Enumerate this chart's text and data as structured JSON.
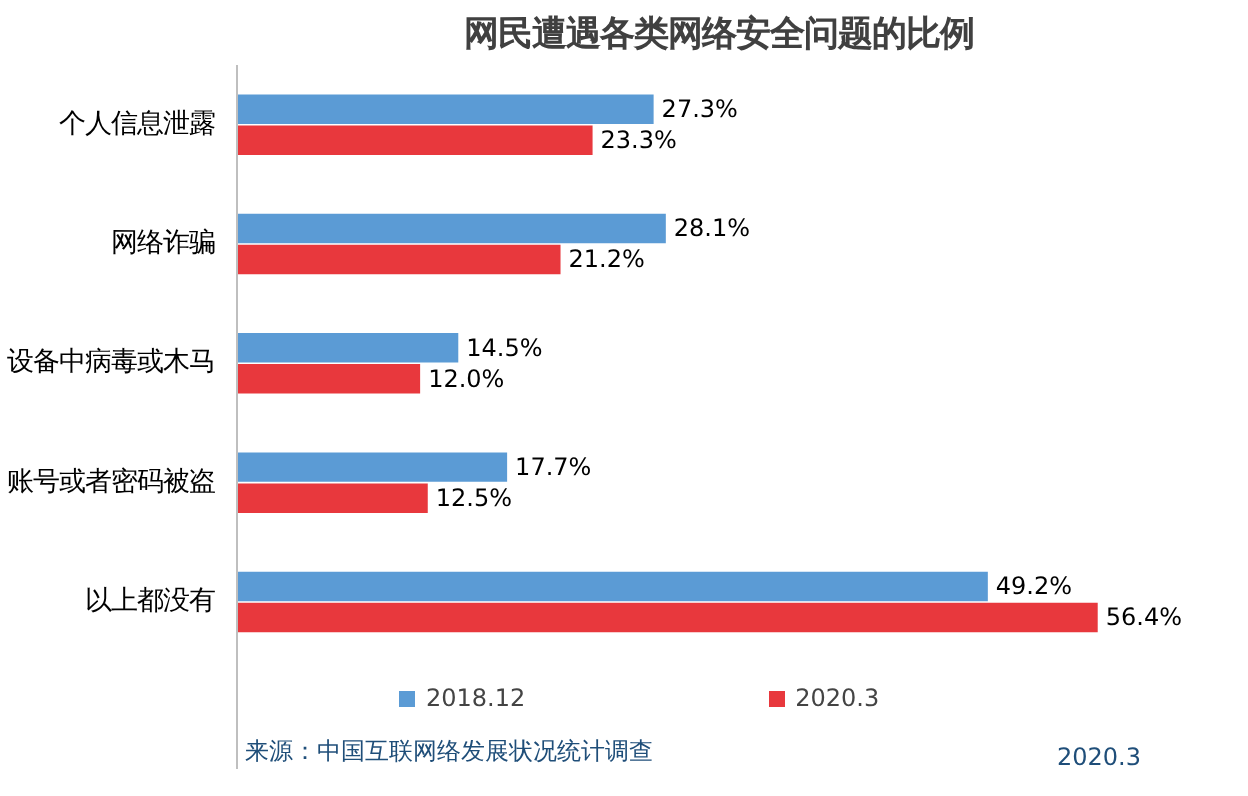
{
  "chart_data": {
    "type": "bar",
    "orientation": "horizontal",
    "title": "网民遭遇各类网络安全问题的比例",
    "categories": [
      "个人信息泄露",
      "网络诈骗",
      "设备中病毒或木马",
      "账号或者密码被盗",
      "以上都没有"
    ],
    "series": [
      {
        "name": "2018.12",
        "color": "#5b9bd5",
        "values": [
          27.3,
          28.1,
          14.5,
          17.7,
          49.2
        ],
        "value_labels": [
          "27.3%",
          "28.1%",
          "14.5%",
          "17.7%",
          "49.2%"
        ]
      },
      {
        "name": "2020.3",
        "color": "#e8383d",
        "values": [
          23.3,
          21.2,
          12.0,
          12.5,
          56.4
        ],
        "value_labels": [
          "23.3%",
          "21.2%",
          "12.0%",
          "12.5%",
          "56.4%"
        ]
      }
    ],
    "legend": "bottom",
    "grid": false,
    "annotations": [
      "来源：中国互联网络发展状况统计调查",
      "2020.3"
    ]
  }
}
